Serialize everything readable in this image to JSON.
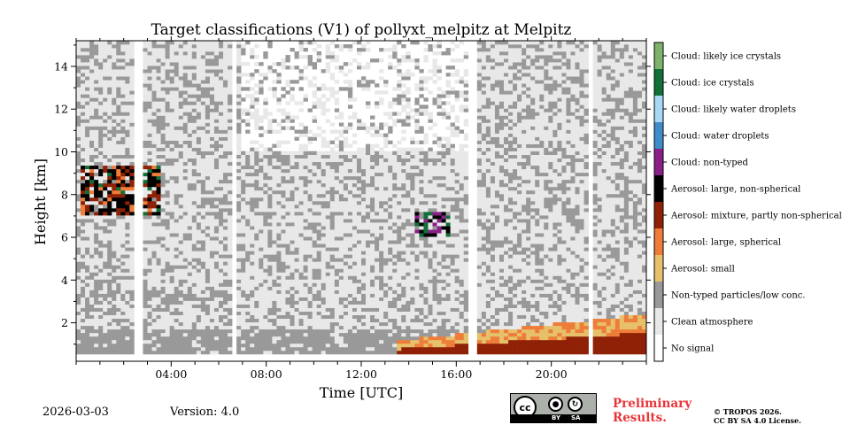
{
  "header": {
    "title": "Target classifications (V1) of pollyxt_melpitz at Melpitz"
  },
  "footer": {
    "date": "2026-03-03",
    "version": "Version: 4.0",
    "prelim_line1": "Preliminary",
    "prelim_line2": "Results.",
    "copyright_line1": "© TROPOS 2026.",
    "copyright_line2": "CC BY SA 4.0 License.",
    "license_cc": "cc",
    "license_by": "BY",
    "license_sa": "SA"
  },
  "colors": {
    "no_signal": "#ffffff",
    "clean_atmosphere": "#e8e8e8",
    "non_typed": "#999999",
    "aerosol_small": "#e6c06a",
    "aerosol_large_spherical": "#ee7d3a",
    "aerosol_mixture": "#8f2106",
    "aerosol_large_nonspherical": "#000000",
    "cloud_non_typed": "#8a1f88",
    "cloud_water": "#3f8ccb",
    "cloud_likely_water": "#a9d8f5",
    "cloud_ice": "#116f38",
    "cloud_likely_ice": "#7fb36d"
  },
  "chart_data": {
    "type": "heatmap",
    "title": "Target classifications (V1) of pollyxt_melpitz at Melpitz",
    "xlabel": "Time [UTC]",
    "ylabel": "Height [km]",
    "xlim": [
      0,
      24
    ],
    "ylim": [
      0.2,
      15.2
    ],
    "x_ticks": [
      {
        "value": 4,
        "label": "04:00"
      },
      {
        "value": 8,
        "label": "08:00"
      },
      {
        "value": 12,
        "label": "12:00"
      },
      {
        "value": 16,
        "label": "16:00"
      },
      {
        "value": 20,
        "label": "20:00"
      }
    ],
    "y_ticks": [
      {
        "value": 2,
        "label": "2"
      },
      {
        "value": 4,
        "label": "4"
      },
      {
        "value": 6,
        "label": "6"
      },
      {
        "value": 8,
        "label": "8"
      },
      {
        "value": 10,
        "label": "10"
      },
      {
        "value": 12,
        "label": "12"
      },
      {
        "value": 14,
        "label": "14"
      }
    ],
    "data_gaps_hours": [
      [
        2.5,
        2.8
      ],
      [
        6.5,
        6.8
      ],
      [
        16.5,
        16.8
      ],
      [
        21.5,
        21.8
      ]
    ],
    "legend": [
      {
        "label": "No signal",
        "color": "#ffffff"
      },
      {
        "label": "Clean atmosphere",
        "color": "#e8e8e8"
      },
      {
        "label": "Non-typed particles/low conc.",
        "color": "#999999"
      },
      {
        "label": "Aerosol: small",
        "color": "#e6c06a"
      },
      {
        "label": "Aerosol: large, spherical",
        "color": "#ee7d3a"
      },
      {
        "label": "Aerosol: mixture, partly non-spherical",
        "color": "#8f2106"
      },
      {
        "label": "Aerosol: large, non-spherical",
        "color": "#000000"
      },
      {
        "label": "Cloud: non-typed",
        "color": "#8a1f88"
      },
      {
        "label": "Cloud: water droplets",
        "color": "#3f8ccb"
      },
      {
        "label": "Cloud: likely water droplets",
        "color": "#a9d8f5"
      },
      {
        "label": "Cloud: ice crystals",
        "color": "#116f38"
      },
      {
        "label": "Cloud: likely ice crystals",
        "color": "#7fb36d"
      }
    ]
  }
}
